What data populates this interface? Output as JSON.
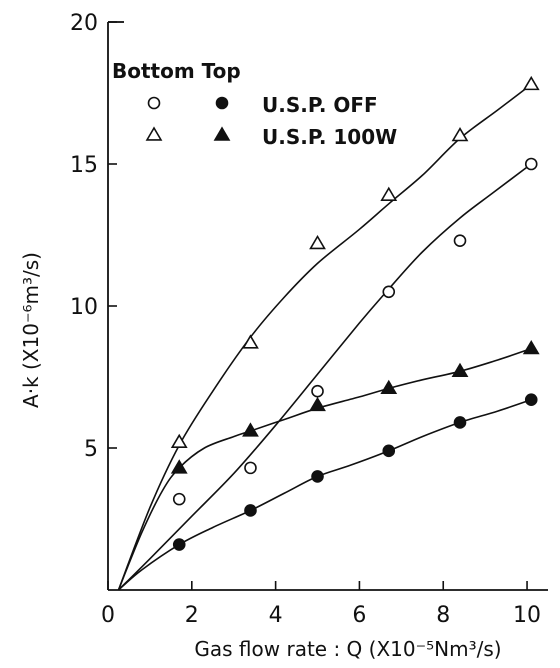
{
  "chart_data": {
    "type": "scatter",
    "xlabel": "Gas flow rate : Q (X10⁻⁵Nm³/s)",
    "ylabel": "A·k (X10⁻⁶m³/s)",
    "xlim": [
      0,
      10.5
    ],
    "ylim": [
      0,
      20
    ],
    "xticks": [
      0,
      2,
      4,
      6,
      8,
      10
    ],
    "yticks": [
      5,
      10,
      15,
      20
    ],
    "x_tick_labels": [
      "0",
      "2",
      "4",
      "6",
      "8",
      "10"
    ],
    "y_tick_labels": [
      "5",
      "10",
      "15",
      "20"
    ],
    "legend": {
      "position": "top-left",
      "header": "Bottom Top",
      "rows": [
        {
          "label": "U.S.P. OFF",
          "bottom_marker": "circle-open",
          "top_marker": "circle-filled"
        },
        {
          "label": "U.S.P. 100W",
          "bottom_marker": "triangle-open",
          "top_marker": "triangle-filled"
        }
      ]
    },
    "series": [
      {
        "marker": "triangle-open",
        "x": [
          1.7,
          3.4,
          5.0,
          6.7,
          8.4,
          10.1
        ],
        "y": [
          5.2,
          8.7,
          12.2,
          13.9,
          16.0,
          17.8
        ],
        "curve": [
          [
            0.25,
            0
          ],
          [
            1.0,
            2.9
          ],
          [
            1.7,
            5.1
          ],
          [
            2.5,
            7.0
          ],
          [
            3.4,
            8.9
          ],
          [
            4.2,
            10.3
          ],
          [
            5.0,
            11.5
          ],
          [
            6.0,
            12.7
          ],
          [
            6.7,
            13.6
          ],
          [
            7.5,
            14.6
          ],
          [
            8.4,
            15.9
          ],
          [
            9.3,
            16.9
          ],
          [
            10.1,
            17.8
          ]
        ]
      },
      {
        "marker": "circle-open",
        "x": [
          1.7,
          3.4,
          5.0,
          6.7,
          8.4,
          10.1
        ],
        "y": [
          3.2,
          4.3,
          7.0,
          10.5,
          12.3,
          15.0
        ],
        "curve": [
          [
            0.25,
            0
          ],
          [
            1.0,
            1.1
          ],
          [
            2.0,
            2.6
          ],
          [
            3.0,
            4.1
          ],
          [
            4.0,
            5.8
          ],
          [
            5.0,
            7.6
          ],
          [
            6.0,
            9.4
          ],
          [
            6.7,
            10.6
          ],
          [
            7.5,
            11.9
          ],
          [
            8.4,
            13.1
          ],
          [
            9.2,
            14.0
          ],
          [
            10.1,
            15.0
          ]
        ]
      },
      {
        "marker": "triangle-filled",
        "x": [
          1.7,
          3.4,
          5.0,
          6.7,
          8.4,
          10.1
        ],
        "y": [
          4.3,
          5.6,
          6.5,
          7.1,
          7.7,
          8.5
        ],
        "curve": [
          [
            0.25,
            0
          ],
          [
            0.8,
            2.0
          ],
          [
            1.3,
            3.5
          ],
          [
            1.7,
            4.3
          ],
          [
            2.3,
            5.0
          ],
          [
            3.0,
            5.4
          ],
          [
            3.4,
            5.6
          ],
          [
            4.2,
            6.0
          ],
          [
            5.0,
            6.4
          ],
          [
            6.0,
            6.8
          ],
          [
            6.7,
            7.1
          ],
          [
            7.5,
            7.4
          ],
          [
            8.4,
            7.7
          ],
          [
            9.3,
            8.1
          ],
          [
            10.1,
            8.5
          ]
        ]
      },
      {
        "marker": "circle-filled",
        "x": [
          1.7,
          3.4,
          5.0,
          6.7,
          8.4,
          10.1
        ],
        "y": [
          1.6,
          2.8,
          4.0,
          4.9,
          5.9,
          6.7
        ],
        "curve": [
          [
            0.25,
            0
          ],
          [
            0.8,
            0.7
          ],
          [
            1.7,
            1.6
          ],
          [
            2.5,
            2.2
          ],
          [
            3.4,
            2.8
          ],
          [
            4.2,
            3.4
          ],
          [
            5.0,
            4.0
          ],
          [
            5.8,
            4.4
          ],
          [
            6.7,
            4.9
          ],
          [
            7.5,
            5.4
          ],
          [
            8.4,
            5.9
          ],
          [
            9.3,
            6.3
          ],
          [
            10.1,
            6.7
          ]
        ]
      }
    ]
  }
}
